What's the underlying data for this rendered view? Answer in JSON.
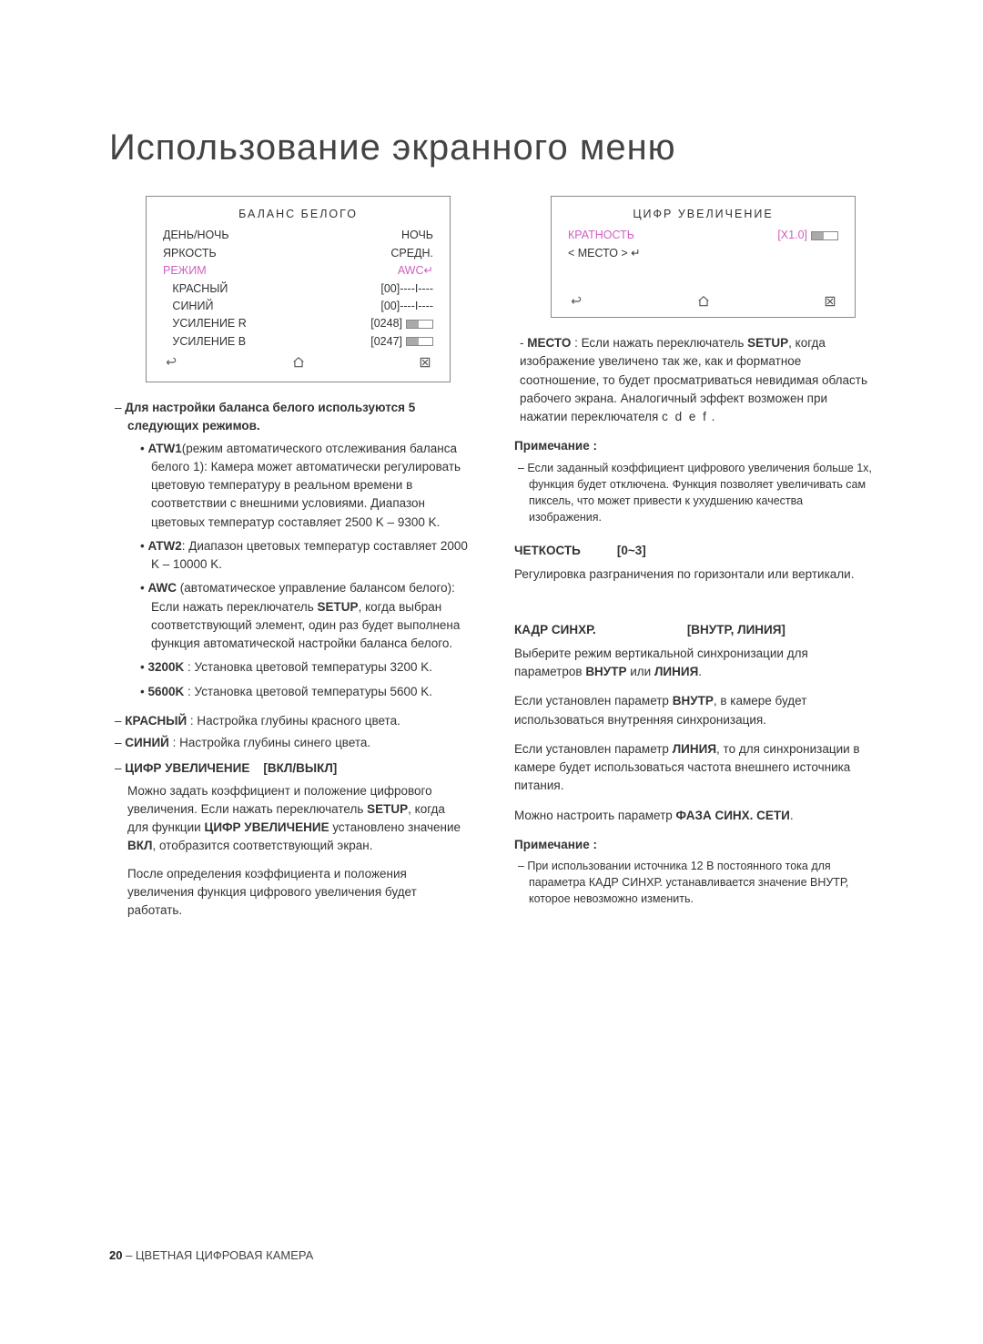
{
  "title": "Использование экранного меню",
  "leftCol": {
    "osd": {
      "title": "БАЛАНС БЕЛОГО",
      "rows": [
        {
          "l": "ДЕНЬ/НОЧЬ",
          "r": "НОЧЬ",
          "sel": false
        },
        {
          "l": "ЯРКОСТЬ",
          "r": "СРЕДН.",
          "sel": false
        },
        {
          "l": "РЕЖИМ",
          "r": "AWC↵",
          "sel": true
        },
        {
          "l": "КРАСНЫЙ",
          "r": "[00]----I----",
          "sel": false,
          "indent": true
        },
        {
          "l": "СИНИЙ",
          "r": "[00]----I----",
          "sel": false,
          "indent": true
        },
        {
          "l": "УСИЛЕНИЕ R",
          "r": "[0248]",
          "sel": false,
          "indent": true,
          "slider": true
        },
        {
          "l": "УСИЛЕНИЕ B",
          "r": "[0247]",
          "sel": false,
          "indent": true,
          "slider": true
        }
      ]
    },
    "intro": "Для настройки баланса белого используются 5 следующих режимов.",
    "bullets": [
      {
        "h": "ATW1",
        "t": "(режим автоматического отслеживания баланса белого 1): Камера может автоматически регулировать цветовую температуру в реальном времени в соответствии с внешними условиями. Диапазон цветовых температур составляет 2500 K – 9300 K."
      },
      {
        "h": "ATW2",
        "t": ": Диапазон цветовых температур составляет 2000 K – 10000 K."
      },
      {
        "h": "AWC",
        "t": " (автоматическое управление балансом белого): Если нажать переключатель ",
        "b2": "SETUP",
        "t2": ", когда выбран соответствующий элемент, один раз будет выполнена функция автоматической настройки баланса белого."
      },
      {
        "h": "3200K",
        "t": " : Установка цветовой температуры 3200 K."
      },
      {
        "h": "5600K",
        "t": " : Установка цветовой температуры 5600 K."
      }
    ],
    "redLine": {
      "h": "КРАСНЫЙ",
      "t": " : Настройка глубины красного цвета."
    },
    "blueLine": {
      "h": "СИНИЙ",
      "t": " : Настройка глубины синего цвета."
    },
    "dzoom": {
      "head": "ЦИФР УВЕЛИЧЕНИЕ",
      "opt": "[ВКЛ/ВЫКЛ]",
      "p1a": "Можно задать коэффициент и положение цифрового увеличения. Если нажать переключатель ",
      "p1b": "SETUP",
      "p1c": ", когда для функции ",
      "p1d": "ЦИФР УВЕЛИЧЕНИЕ",
      "p1e": " установлено значение ",
      "p1f": "ВКЛ",
      "p1g": ", отобразится соответствующий экран.",
      "p2": "После определения коэффициента и положения увеличения функция цифрового увеличения будет работать."
    }
  },
  "rightCol": {
    "osd": {
      "title": "ЦИФР УВЕЛИЧЕНИЕ",
      "rows": [
        {
          "l": "КРАТНОСТЬ",
          "r": "[X1.0]",
          "sel": true,
          "slider": true
        },
        {
          "l": "< МЕСТО >  ↵",
          "r": "",
          "sel": false
        }
      ]
    },
    "mesto": {
      "a": "- ",
      "b": "МЕСТО",
      "c": " : Если нажать переключатель ",
      "d": "SETUP",
      "e": ", когда изображение увеличено так же, как и форматное соотношение, то будет просматриваться невидимая область рабочего экрана. Аналогичный эффект возможен при нажатии переключателя ",
      "f": "c d e f",
      "g": " ."
    },
    "note1": {
      "head": "Примечание :",
      "body": "– Если заданный коэффициент цифрового увеличения больше 1x, функция             будет отключена. Функция                      позволяет увеличивать сам пиксель, что может привести к ухудшению качества изображения."
    },
    "sharp": {
      "head": "ЧЕТКОСТЬ",
      "opt": "[0~3]",
      "body": "Регулировка разграничения по горизонтали или вертикали."
    },
    "sync": {
      "head": "КАДР СИНХР.",
      "opt": "[ВНУТР, ЛИНИЯ]",
      "p1a": "Выберите режим вертикальной синхронизации для параметров ",
      "p1b": "ВНУТР",
      "p1c": " или ",
      "p1d": "ЛИНИЯ",
      "p1e": ".",
      "p2a": "Если установлен параметр ",
      "p2b": "ВНУТР",
      "p2c": ", в камере будет использоваться внутренняя синхронизация.",
      "p3a": "Если установлен параметр ",
      "p3b": "ЛИНИЯ",
      "p3c": ", то для синхронизации в камере будет использоваться частота внешнего источника питания.",
      "p4a": "Можно настроить параметр ",
      "p4b": "ФАЗА СИНХ. СЕТИ",
      "p4c": "."
    },
    "note2": {
      "head": "Примечание :",
      "body": "– При использовании источника 12 В постоянного тока для параметра  КАДР СИНХР. устанавливается значение ВНУТР, которое невозможно изменить."
    }
  },
  "footer": {
    "page": "20",
    "text": " – ЦВЕТНАЯ ЦИФРОВАЯ КАМЕРА"
  }
}
